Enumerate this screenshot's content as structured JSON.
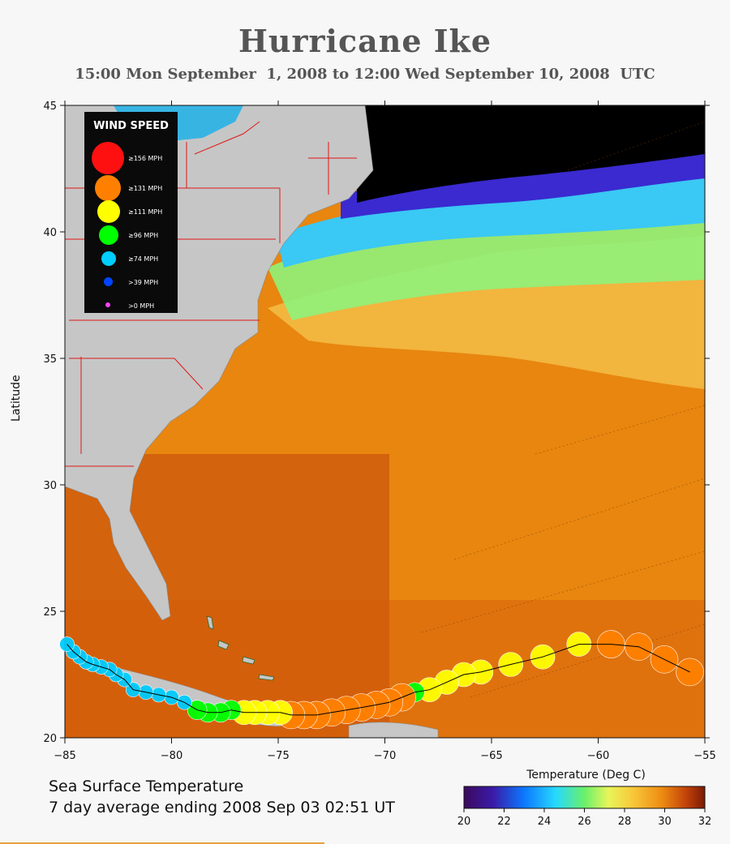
{
  "title": "Hurricane Ike",
  "subtitle": "15:00 Mon September  1, 2008 to 12:00 Wed September 10, 2008  UTC",
  "map": {
    "y_axis_label": "Latitude",
    "x_ticks": [
      "−85",
      "−80",
      "−75",
      "−70",
      "−65",
      "−60",
      "−55"
    ],
    "y_ticks": [
      "20",
      "25",
      "30",
      "35",
      "40",
      "45"
    ],
    "lon_range": [
      -85,
      -55
    ],
    "lat_range": [
      20,
      45
    ],
    "land_color": "#c4c4c4",
    "ocean_warm_color": "#ec8a10",
    "ocean_cold_color": "#000000"
  },
  "caption": {
    "line1": "Sea Surface Temperature",
    "line2": "7 day average ending 2008 Sep 03 02:51 UT"
  },
  "colorbar": {
    "label": "Temperature (Deg C)",
    "ticks": [
      "20",
      "22",
      "24",
      "26",
      "28",
      "30",
      "32"
    ],
    "range": [
      20,
      32
    ]
  },
  "legend": {
    "title": "WIND SPEED",
    "items": [
      {
        "label": "≥156 MPH",
        "color": "#ff1010"
      },
      {
        "label": "≥131 MPH",
        "color": "#ff8000"
      },
      {
        "label": "≥111 MPH",
        "color": "#ffff00"
      },
      {
        "label": "≥96 MPH",
        "color": "#00ff00"
      },
      {
        "label": "≥74 MPH",
        "color": "#00ccff"
      },
      {
        "label": ">39 MPH",
        "color": "#0044ff"
      },
      {
        "label": ">0 MPH",
        "color": "#ff44ff"
      }
    ]
  },
  "track": {
    "points": [
      {
        "lon": -55.7,
        "lat": 22.6,
        "cat": 1
      },
      {
        "lon": -56.9,
        "lat": 23.1,
        "cat": 1
      },
      {
        "lon": -58.1,
        "lat": 23.6,
        "cat": 1
      },
      {
        "lon": -59.4,
        "lat": 23.7,
        "cat": 1
      },
      {
        "lon": -60.9,
        "lat": 23.7,
        "cat": 2
      },
      {
        "lon": -62.6,
        "lat": 23.2,
        "cat": 2
      },
      {
        "lon": -64.1,
        "lat": 22.9,
        "cat": 2
      },
      {
        "lon": -65.5,
        "lat": 22.6,
        "cat": 2
      },
      {
        "lon": -66.3,
        "lat": 22.5,
        "cat": 2
      },
      {
        "lon": -67.1,
        "lat": 22.2,
        "cat": 2
      },
      {
        "lon": -67.9,
        "lat": 21.9,
        "cat": 2
      },
      {
        "lon": -68.6,
        "lat": 21.8,
        "cat": 3
      },
      {
        "lon": -69.2,
        "lat": 21.6,
        "cat": 1
      },
      {
        "lon": -69.8,
        "lat": 21.4,
        "cat": 1
      },
      {
        "lon": -70.4,
        "lat": 21.3,
        "cat": 1
      },
      {
        "lon": -71.1,
        "lat": 21.2,
        "cat": 1
      },
      {
        "lon": -71.8,
        "lat": 21.1,
        "cat": 1
      },
      {
        "lon": -72.5,
        "lat": 21.0,
        "cat": 1
      },
      {
        "lon": -73.2,
        "lat": 20.9,
        "cat": 1
      },
      {
        "lon": -73.8,
        "lat": 20.9,
        "cat": 1
      },
      {
        "lon": -74.4,
        "lat": 20.9,
        "cat": 1
      },
      {
        "lon": -74.9,
        "lat": 21.0,
        "cat": 2
      },
      {
        "lon": -75.5,
        "lat": 21.0,
        "cat": 2
      },
      {
        "lon": -76.1,
        "lat": 21.0,
        "cat": 2
      },
      {
        "lon": -76.6,
        "lat": 21.0,
        "cat": 2
      },
      {
        "lon": -77.2,
        "lat": 21.1,
        "cat": 3
      },
      {
        "lon": -77.7,
        "lat": 21.0,
        "cat": 3
      },
      {
        "lon": -78.3,
        "lat": 21.0,
        "cat": 3
      },
      {
        "lon": -78.8,
        "lat": 21.1,
        "cat": 3
      },
      {
        "lon": -79.4,
        "lat": 21.4,
        "cat": 4
      },
      {
        "lon": -80.0,
        "lat": 21.6,
        "cat": 4
      },
      {
        "lon": -80.6,
        "lat": 21.7,
        "cat": 4
      },
      {
        "lon": -81.2,
        "lat": 21.8,
        "cat": 4
      },
      {
        "lon": -81.8,
        "lat": 21.9,
        "cat": 4
      },
      {
        "lon": -82.2,
        "lat": 22.3,
        "cat": 4
      },
      {
        "lon": -82.6,
        "lat": 22.5,
        "cat": 4
      },
      {
        "lon": -82.9,
        "lat": 22.7,
        "cat": 4
      },
      {
        "lon": -83.3,
        "lat": 22.8,
        "cat": 4
      },
      {
        "lon": -83.7,
        "lat": 22.9,
        "cat": 4
      },
      {
        "lon": -84.0,
        "lat": 23.0,
        "cat": 4
      },
      {
        "lon": -84.3,
        "lat": 23.2,
        "cat": 4
      },
      {
        "lon": -84.6,
        "lat": 23.4,
        "cat": 4
      },
      {
        "lon": -84.9,
        "lat": 23.7,
        "cat": 4
      }
    ]
  }
}
